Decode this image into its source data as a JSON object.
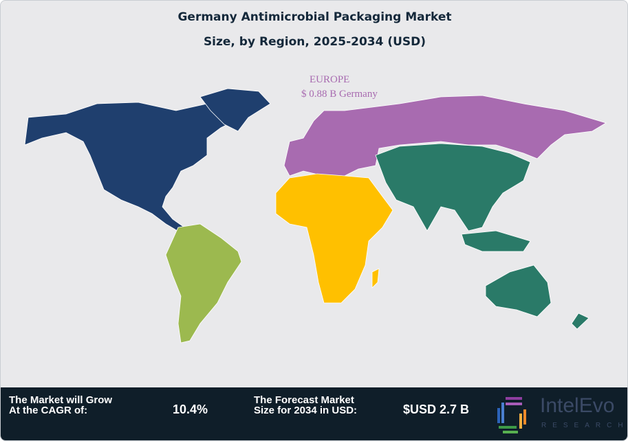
{
  "title_line1": "Germany Antimicrobial Packaging Market",
  "title_line2": "Size, by Region, 2025-2034 (USD)",
  "map": {
    "highlight_region": "EUROPE",
    "highlight_value": "$ 0.88 B Germany",
    "region_colors": {
      "north_america": "#1f3f6e",
      "south_america": "#9cb94f",
      "europe": "#a86bb0",
      "africa": "#ffc000",
      "asia_pacific": "#2a7a68"
    }
  },
  "footer": {
    "cagr_label": "The Market will Grow At the CAGR of:",
    "cagr_value": "10.4%",
    "forecast_label": "The Forecast Market Size for 2034 in USD:",
    "forecast_value": "$USD 2.7 B",
    "logo_name": "IntelEvo",
    "logo_sub": "RESEARCH"
  }
}
